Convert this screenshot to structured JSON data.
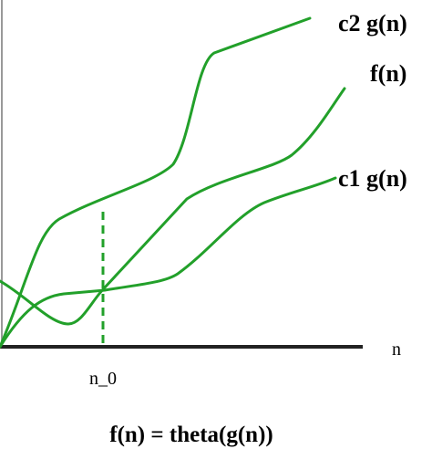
{
  "curves": {
    "upper": "c2 g(n)",
    "middle": "f(n)",
    "lower": "c1 g(n)"
  },
  "axis": {
    "x_label": "n",
    "threshold": "n_0"
  },
  "caption": "f(n) = theta(g(n))"
}
